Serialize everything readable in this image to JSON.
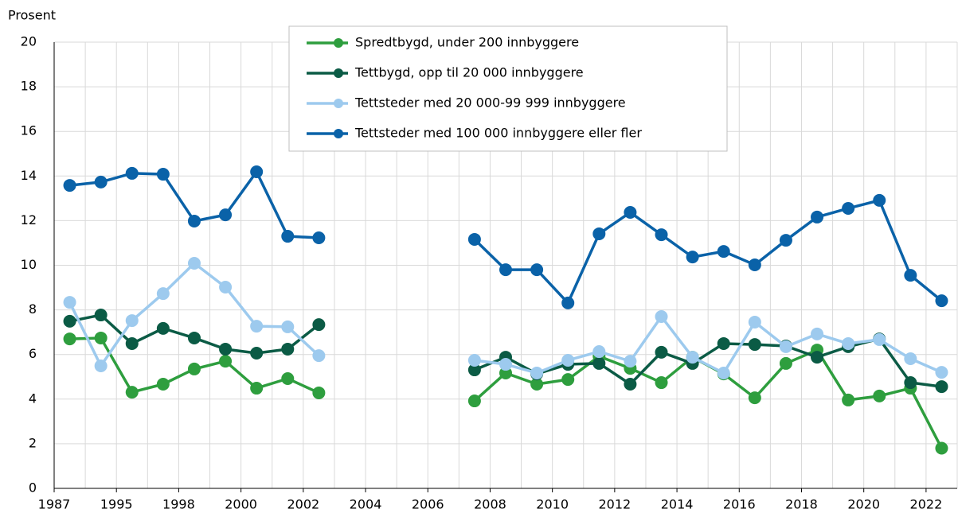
{
  "chart_data": {
    "type": "line",
    "y_label": "Prosent",
    "categories": [
      null,
      null,
      null,
      null,
      null,
      null,
      null,
      null,
      null,
      null,
      null,
      null,
      null,
      null,
      null,
      null,
      null,
      null,
      null,
      null,
      null,
      null,
      null,
      null,
      null,
      null,
      null,
      null,
      null
    ],
    "xtick_labels": [
      "1987",
      "1995",
      "1998",
      "2000",
      "2002",
      "2004",
      "2006",
      "2008",
      "2010",
      "2012",
      "2014",
      "2016",
      "2018",
      "2020",
      "2022"
    ],
    "series": [
      {
        "name": "Spredtbygd, under 200 innbyggere",
        "color": "#2e9e3e",
        "values": [
          6.7,
          6.74,
          4.31,
          4.67,
          5.35,
          5.7,
          4.49,
          4.92,
          4.28,
          null,
          null,
          null,
          null,
          3.92,
          5.17,
          4.67,
          4.88,
          5.92,
          5.38,
          4.74,
          5.88,
          5.13,
          4.06,
          5.6,
          6.2,
          3.96,
          4.14,
          4.49,
          1.8
        ]
      },
      {
        "name": "Tettbygd, opp til 20 000 innbyggere",
        "color": "#0b5b45",
        "values": [
          7.49,
          7.77,
          6.49,
          7.17,
          6.74,
          6.24,
          6.06,
          6.24,
          7.34,
          null,
          null,
          null,
          null,
          5.31,
          5.88,
          5.13,
          5.56,
          5.6,
          4.67,
          6.1,
          5.6,
          6.49,
          6.45,
          6.38,
          5.88,
          6.35,
          6.7,
          4.74,
          4.56
        ]
      },
      {
        "name": "Tettsteder med 20 000-99 999 innbyggere",
        "color": "#9dcaee",
        "values": [
          8.34,
          5.49,
          7.52,
          8.73,
          10.09,
          9.02,
          7.27,
          7.24,
          5.95,
          null,
          null,
          null,
          null,
          5.74,
          5.56,
          5.17,
          5.74,
          6.13,
          5.7,
          7.7,
          5.88,
          5.17,
          7.45,
          6.35,
          6.92,
          6.49,
          6.67,
          5.81,
          5.2
        ]
      },
      {
        "name": "Tettsteder med 100 000 innbyggere eller fler",
        "color": "#0a62a8",
        "values": [
          13.58,
          13.73,
          14.12,
          14.08,
          11.98,
          12.26,
          14.19,
          11.3,
          11.23,
          null,
          null,
          null,
          null,
          11.16,
          9.8,
          9.8,
          8.31,
          11.41,
          12.37,
          11.37,
          10.37,
          10.62,
          10.02,
          11.12,
          12.16,
          12.55,
          12.91,
          9.55,
          8.41
        ]
      }
    ],
    "ylim": [
      0,
      20
    ],
    "yticks": [
      0,
      2,
      4,
      6,
      8,
      10,
      12,
      14,
      16,
      18,
      20
    ],
    "grid": true
  }
}
